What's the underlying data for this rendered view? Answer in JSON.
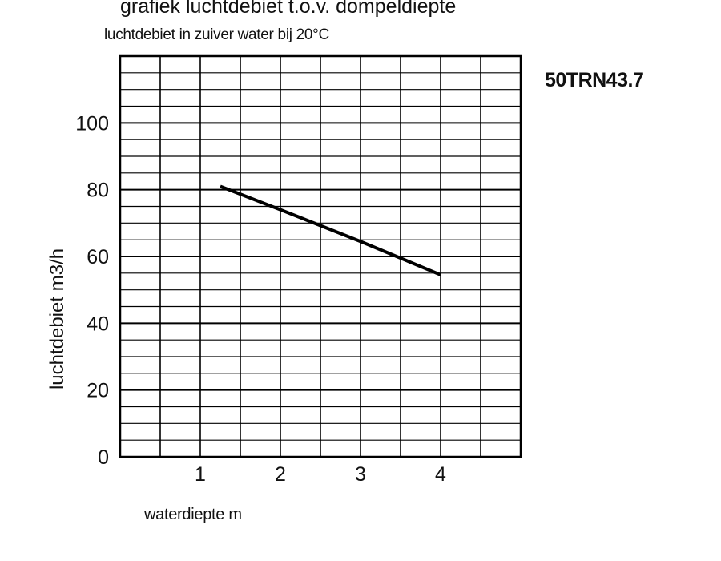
{
  "chart_data": {
    "type": "line",
    "title": "grafiek luchtdebiet t.o.v. dompeldiepte",
    "subtitle": "luchtdebiet in zuiver water bij 20°C",
    "model": "50TRN43.7",
    "xlabel": "waterdiepte m",
    "ylabel": "luchtdebiet m3/h",
    "xlim": [
      0,
      5
    ],
    "ylim": [
      0,
      120
    ],
    "x_ticks": [
      1,
      2,
      3,
      4
    ],
    "y_ticks": [
      0,
      20,
      40,
      60,
      80,
      100
    ],
    "grid": true,
    "series": [
      {
        "x": [
          1.25,
          2,
          3,
          4
        ],
        "y": [
          81,
          74,
          64.5,
          54.5
        ]
      }
    ]
  }
}
